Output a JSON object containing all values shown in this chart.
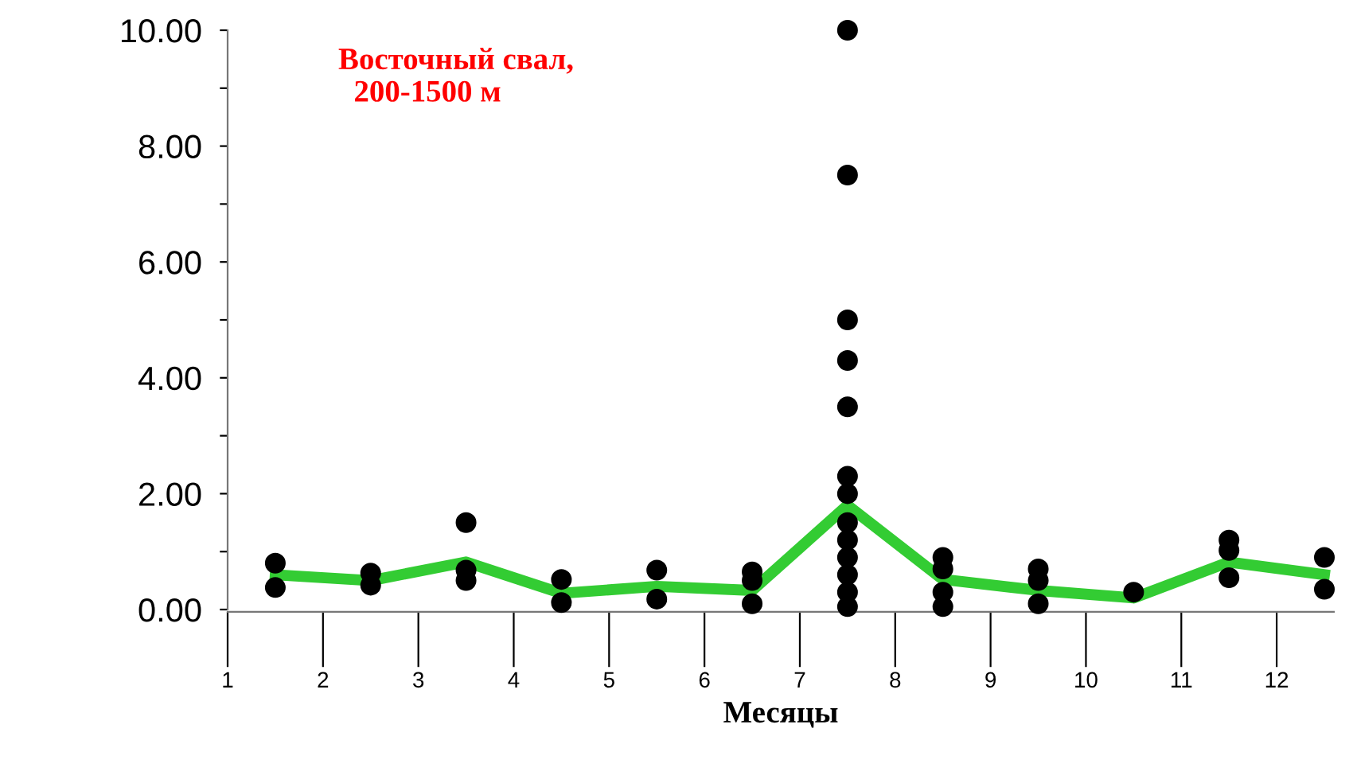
{
  "chart_data": {
    "type": "scatter",
    "title": "Восточный свал,\n  200-1500 м",
    "xlabel": "Месяцы",
    "xlim": [
      1,
      12.6
    ],
    "xticks": [
      1,
      2,
      3,
      4,
      5,
      6,
      7,
      8,
      9,
      10,
      11,
      12
    ],
    "ylim": [
      0,
      10
    ],
    "yticks": [
      {
        "value": 0,
        "label": "0.00"
      },
      {
        "value": 1,
        "label": null
      },
      {
        "value": 2,
        "label": "2.00"
      },
      {
        "value": 3,
        "label": null
      },
      {
        "value": 4,
        "label": "4.00"
      },
      {
        "value": 5,
        "label": null
      },
      {
        "value": 6,
        "label": "6.00"
      },
      {
        "value": 7,
        "label": null
      },
      {
        "value": 8,
        "label": "8.00"
      },
      {
        "value": 9,
        "label": null
      },
      {
        "value": 10,
        "label": "10.00"
      }
    ],
    "grid": false,
    "legend": false,
    "series": [
      {
        "color": "#000000",
        "marker": "circle",
        "x": [
          1.5,
          1.5,
          2.5,
          2.5,
          3.5,
          3.5,
          3.5,
          4.5,
          4.5,
          5.5,
          5.5,
          6.5,
          6.5,
          6.5,
          7.5,
          7.5,
          7.5,
          7.5,
          7.5,
          7.5,
          7.5,
          7.5,
          7.5,
          7.5,
          7.5,
          7.5,
          7.5,
          8.5,
          8.5,
          8.5,
          8.5,
          9.5,
          9.5,
          9.5,
          10.5,
          11.5,
          11.5,
          11.5,
          12.5,
          12.5
        ],
        "values": [
          0.8,
          0.38,
          0.63,
          0.42,
          1.5,
          0.68,
          0.5,
          0.52,
          0.12,
          0.68,
          0.18,
          0.65,
          0.5,
          0.1,
          10.0,
          7.5,
          5.0,
          4.3,
          3.5,
          2.3,
          2.0,
          1.5,
          1.2,
          0.9,
          0.6,
          0.3,
          0.05,
          0.9,
          0.7,
          0.3,
          0.05,
          0.7,
          0.5,
          0.1,
          0.3,
          1.2,
          1.02,
          0.55,
          0.9,
          0.35
        ]
      },
      {
        "type": "line",
        "color": "#33cc33",
        "marker": "none",
        "line_style": "solid",
        "x": [
          1.5,
          2.5,
          3.5,
          4.5,
          5.5,
          6.5,
          7.5,
          8.5,
          9.5,
          10.5,
          11.5,
          12.5
        ],
        "values": [
          0.6,
          0.5,
          0.82,
          0.28,
          0.4,
          0.33,
          1.8,
          0.52,
          0.33,
          0.2,
          0.82,
          0.6
        ]
      }
    ]
  }
}
